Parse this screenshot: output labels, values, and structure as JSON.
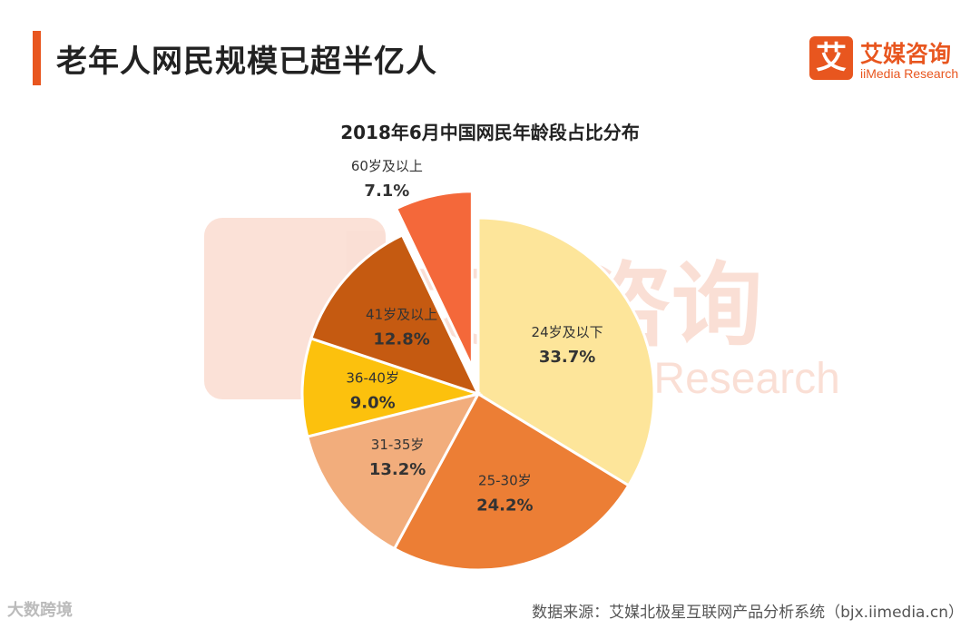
{
  "header": {
    "title": "老年人网民规模已超半亿人",
    "accent_color": "#e8561f"
  },
  "logo": {
    "mark": "艾",
    "name": "艾媒咨询",
    "subtitle": "iiMedia Research"
  },
  "watermark": {
    "text": "艾媒咨询",
    "subtitle": "iiMedia Research"
  },
  "chart_data": {
    "type": "pie",
    "title": "2018年6月中国网民年龄段占比分布",
    "slices": [
      {
        "label": "24岁及以下",
        "value": 33.7,
        "display": "33.7%",
        "color": "#fde59a",
        "exploded": false
      },
      {
        "label": "25-30岁",
        "value": 24.2,
        "display": "24.2%",
        "color": "#ec7e35",
        "exploded": false
      },
      {
        "label": "31-35岁",
        "value": 13.2,
        "display": "13.2%",
        "color": "#f2ad7c",
        "exploded": false
      },
      {
        "label": "36-40岁",
        "value": 9.0,
        "display": "9.0%",
        "color": "#fcc10d",
        "exploded": false
      },
      {
        "label": "41岁及以上",
        "value": 12.8,
        "display": "12.8%",
        "color": "#c55a11",
        "exploded": false
      },
      {
        "label": "60岁及以上",
        "value": 7.1,
        "display": "7.1%",
        "color": "#f4683a",
        "exploded": true
      }
    ]
  },
  "footer": {
    "source": "数据来源：艾媒北极星互联网产品分析系统（bjx.iimedia.cn）",
    "corner_mark": "大数跨境"
  }
}
